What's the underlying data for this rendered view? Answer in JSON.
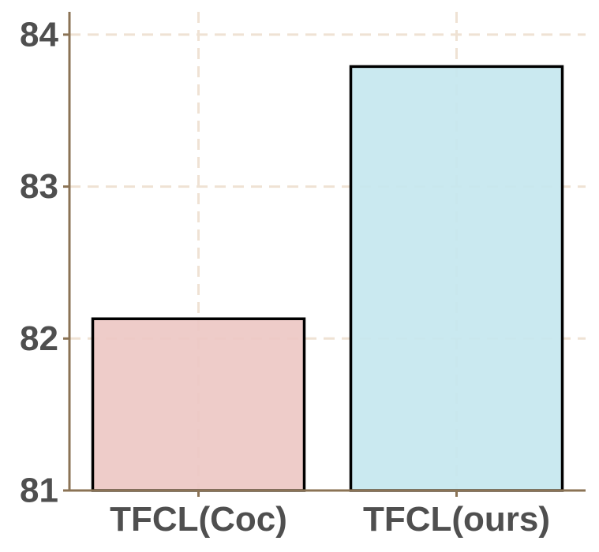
{
  "chart_data": {
    "type": "bar",
    "categories": [
      "TFCL(Coc)",
      "TFCL(ours)"
    ],
    "values": [
      82.13,
      83.79
    ],
    "ylim": [
      81,
      84.15
    ],
    "yticks": [
      81,
      82,
      83,
      84
    ],
    "title": "",
    "xlabel": "",
    "ylabel": "",
    "grid": true,
    "grid_style": "dashed",
    "bar_colors": [
      "#edc8c4",
      "#c5e7ef"
    ],
    "bar_edge_color": "#000000",
    "axis_color": "#8b7355",
    "grid_color": "#efe2d4",
    "tick_label_color": "#4f4f4f"
  }
}
